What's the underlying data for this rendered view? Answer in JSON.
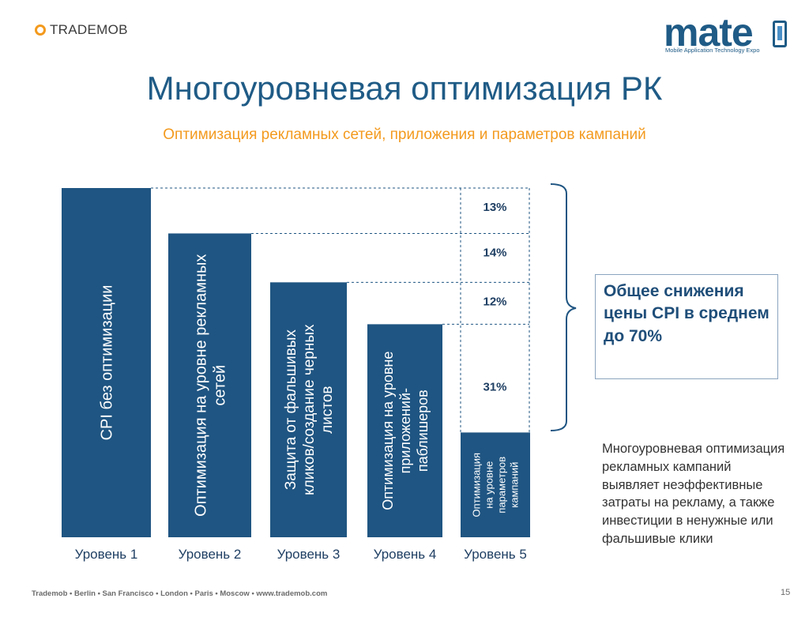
{
  "logos": {
    "trademob": "TRADEMOB",
    "mate": "mate",
    "mate_tagline": "Mobile Application Technology Expo"
  },
  "title": "Многоуровневая оптимизация РК",
  "subtitle": "Оптимизация рекламных сетей, приложения и параметров кампаний",
  "summary": "Общее снижения цены CPI в среднем до 70%",
  "description": "Многоуровневая оптимизация рекламных кампаний выявляет неэффективные затраты на рекламу, а также инвестиции в ненужные или фальшивые клики",
  "footer": "Trademob  • Berlin • San Francisco • London • Paris • Moscow • www.trademob.com",
  "page_number": "15",
  "colors": {
    "bar": "#1f5582",
    "title": "#1f5b86",
    "subtitle": "#f39a1e",
    "dashed": "#1f5582"
  },
  "chart_data": {
    "type": "bar",
    "relative_scale": true,
    "categories": [
      "Уровень 1",
      "Уровень 2",
      "Уровень 3",
      "Уровень 4",
      "Уровень 5"
    ],
    "values": [
      100,
      87,
      73,
      61,
      30
    ],
    "bar_labels": [
      [
        "CPI  без оптимизации"
      ],
      [
        "Оптимизация на уровне рекламных",
        "сетей"
      ],
      [
        "Защита от фальшивых",
        "кликов/создание черных",
        "листов"
      ],
      [
        "Оптимизация на уровне",
        "приложений-",
        "паблишеров"
      ],
      [
        "Оптимизация",
        "на уровне",
        "параметров",
        "кампаний"
      ]
    ],
    "reductions": [
      {
        "label": "13%",
        "from_level": 1,
        "to_level": 2
      },
      {
        "label": "14%",
        "from_level": 2,
        "to_level": 3
      },
      {
        "label": "12%",
        "from_level": 3,
        "to_level": 4
      },
      {
        "label": "31%",
        "from_level": 4,
        "to_level": 5
      }
    ],
    "grid": false,
    "legend": "none"
  }
}
